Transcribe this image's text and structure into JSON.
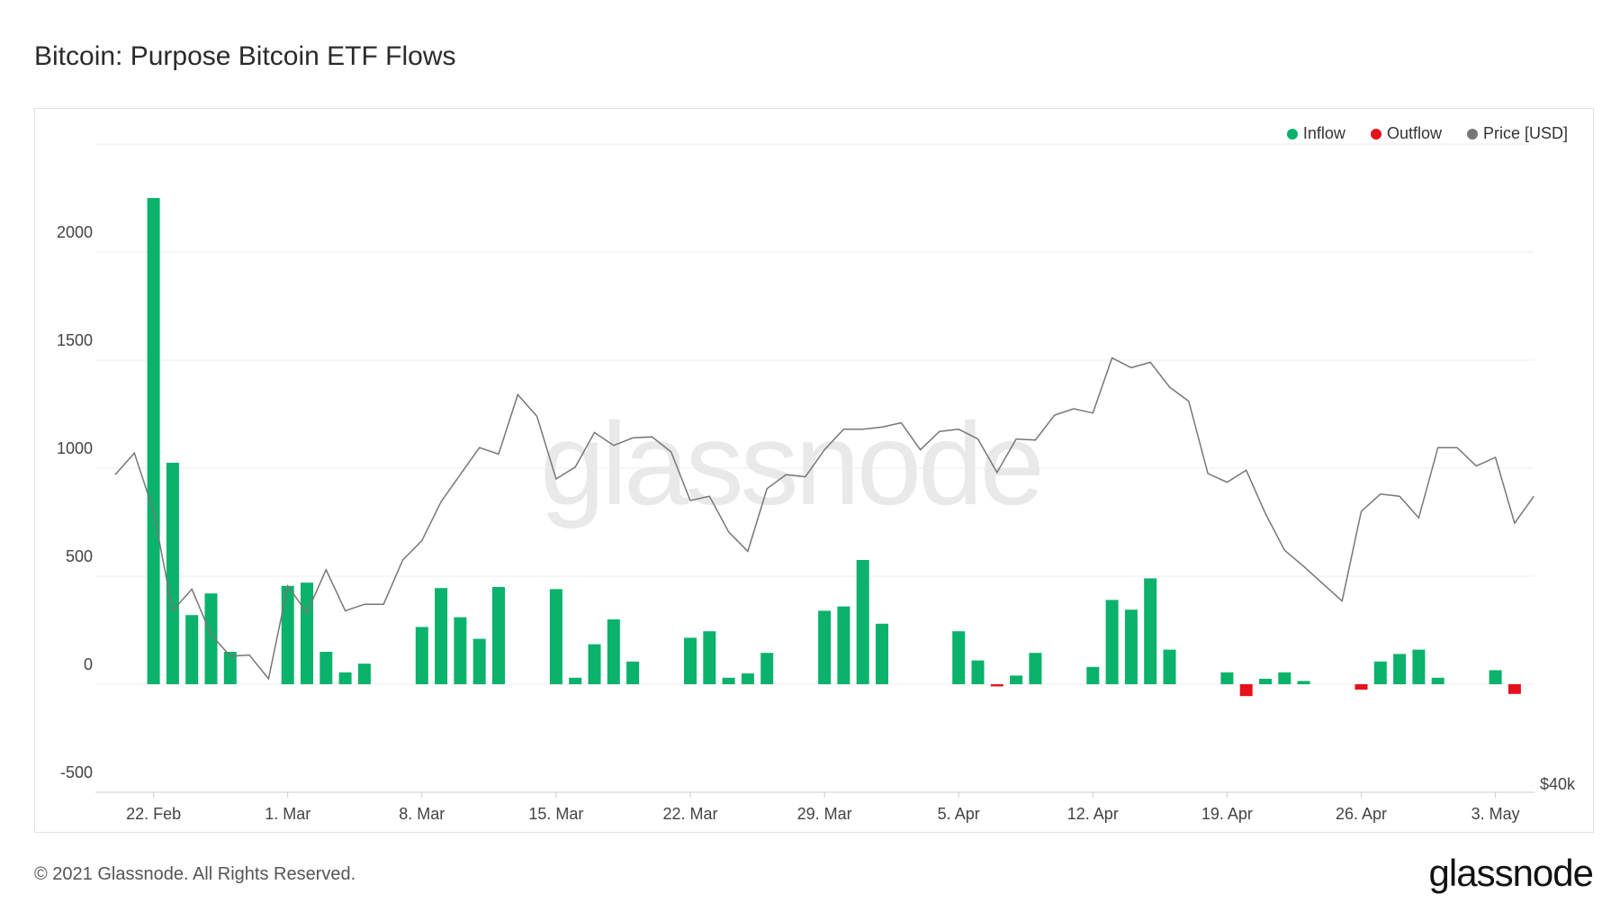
{
  "title": "Bitcoin: Purpose Bitcoin ETF Flows",
  "footer": "© 2021 Glassnode. All Rights Reserved.",
  "logo": "glassnode",
  "watermark": "glassnode",
  "legend": [
    {
      "label": "Inflow",
      "color": "#0ab26b"
    },
    {
      "label": "Outflow",
      "color": "#e5121b"
    },
    {
      "label": "Price [USD]",
      "color": "#777777"
    }
  ],
  "chart_data": {
    "type": "bar",
    "title": "Bitcoin: Purpose Bitcoin ETF Flows",
    "ylim": [
      -500,
      2500
    ],
    "yticks": [
      -500,
      0,
      500,
      1000,
      1500,
      2000
    ],
    "right_axis_label": "$40k",
    "xticks": [
      {
        "label": "22. Feb",
        "day": 2
      },
      {
        "label": "1. Mar",
        "day": 9
      },
      {
        "label": "8. Mar",
        "day": 16
      },
      {
        "label": "15. Mar",
        "day": 23
      },
      {
        "label": "22. Mar",
        "day": 30
      },
      {
        "label": "29. Mar",
        "day": 37
      },
      {
        "label": "5. Apr",
        "day": 44
      },
      {
        "label": "12. Apr",
        "day": 51
      },
      {
        "label": "19. Apr",
        "day": 58
      },
      {
        "label": "26. Apr",
        "day": 65
      },
      {
        "label": "3. May",
        "day": 72
      }
    ],
    "series": [
      {
        "name": "Inflow",
        "color": "#0ab26b",
        "points": [
          [
            2,
            2250
          ],
          [
            3,
            1025
          ],
          [
            4,
            320
          ],
          [
            5,
            420
          ],
          [
            6,
            150
          ],
          [
            9,
            455
          ],
          [
            10,
            470
          ],
          [
            11,
            150
          ],
          [
            12,
            55
          ],
          [
            13,
            95
          ],
          [
            16,
            265
          ],
          [
            17,
            445
          ],
          [
            18,
            310
          ],
          [
            19,
            210
          ],
          [
            20,
            450
          ],
          [
            23,
            440
          ],
          [
            24,
            30
          ],
          [
            25,
            185
          ],
          [
            26,
            300
          ],
          [
            27,
            105
          ],
          [
            30,
            215
          ],
          [
            31,
            245
          ],
          [
            32,
            30
          ],
          [
            33,
            50
          ],
          [
            34,
            145
          ],
          [
            37,
            340
          ],
          [
            38,
            360
          ],
          [
            39,
            575
          ],
          [
            40,
            280
          ],
          [
            44,
            245
          ],
          [
            45,
            110
          ],
          [
            47,
            40
          ],
          [
            48,
            145
          ],
          [
            51,
            80
          ],
          [
            52,
            390
          ],
          [
            53,
            345
          ],
          [
            54,
            490
          ],
          [
            55,
            160
          ],
          [
            58,
            55
          ],
          [
            60,
            25
          ],
          [
            61,
            55
          ],
          [
            62,
            15
          ],
          [
            66,
            105
          ],
          [
            67,
            140
          ],
          [
            68,
            160
          ],
          [
            69,
            30
          ],
          [
            72,
            65
          ]
        ]
      },
      {
        "name": "Outflow",
        "color": "#e5121b",
        "points": [
          [
            46,
            -10
          ],
          [
            59,
            -55
          ],
          [
            65,
            -25
          ],
          [
            73,
            -45
          ]
        ]
      },
      {
        "name": "Price [USD]",
        "color": "#777777",
        "points": [
          [
            0,
            970
          ],
          [
            1,
            1070
          ],
          [
            2,
            800
          ],
          [
            3,
            340
          ],
          [
            4,
            440
          ],
          [
            5,
            230
          ],
          [
            6,
            130
          ],
          [
            7,
            135
          ],
          [
            8,
            25
          ],
          [
            9,
            455
          ],
          [
            10,
            330
          ],
          [
            11,
            530
          ],
          [
            12,
            340
          ],
          [
            13,
            370
          ],
          [
            14,
            370
          ],
          [
            15,
            575
          ],
          [
            16,
            665
          ],
          [
            17,
            845
          ],
          [
            18,
            970
          ],
          [
            19,
            1095
          ],
          [
            20,
            1065
          ],
          [
            21,
            1340
          ],
          [
            22,
            1240
          ],
          [
            23,
            950
          ],
          [
            24,
            1005
          ],
          [
            25,
            1165
          ],
          [
            26,
            1105
          ],
          [
            27,
            1140
          ],
          [
            28,
            1145
          ],
          [
            29,
            1075
          ],
          [
            30,
            850
          ],
          [
            31,
            870
          ],
          [
            32,
            705
          ],
          [
            33,
            615
          ],
          [
            34,
            905
          ],
          [
            35,
            970
          ],
          [
            36,
            960
          ],
          [
            37,
            1085
          ],
          [
            38,
            1180
          ],
          [
            39,
            1180
          ],
          [
            40,
            1190
          ],
          [
            41,
            1210
          ],
          [
            42,
            1085
          ],
          [
            43,
            1170
          ],
          [
            44,
            1180
          ],
          [
            45,
            1135
          ],
          [
            46,
            980
          ],
          [
            47,
            1135
          ],
          [
            48,
            1130
          ],
          [
            49,
            1245
          ],
          [
            50,
            1275
          ],
          [
            51,
            1255
          ],
          [
            52,
            1510
          ],
          [
            53,
            1465
          ],
          [
            54,
            1490
          ],
          [
            55,
            1375
          ],
          [
            56,
            1310
          ],
          [
            57,
            975
          ],
          [
            58,
            935
          ],
          [
            59,
            990
          ],
          [
            60,
            790
          ],
          [
            61,
            620
          ],
          [
            62,
            545
          ],
          [
            63,
            465
          ],
          [
            64,
            385
          ],
          [
            65,
            800
          ],
          [
            66,
            880
          ],
          [
            67,
            870
          ],
          [
            68,
            770
          ],
          [
            69,
            1095
          ],
          [
            70,
            1095
          ],
          [
            71,
            1010
          ],
          [
            72,
            1050
          ],
          [
            73,
            745
          ],
          [
            74,
            870
          ]
        ]
      }
    ]
  }
}
